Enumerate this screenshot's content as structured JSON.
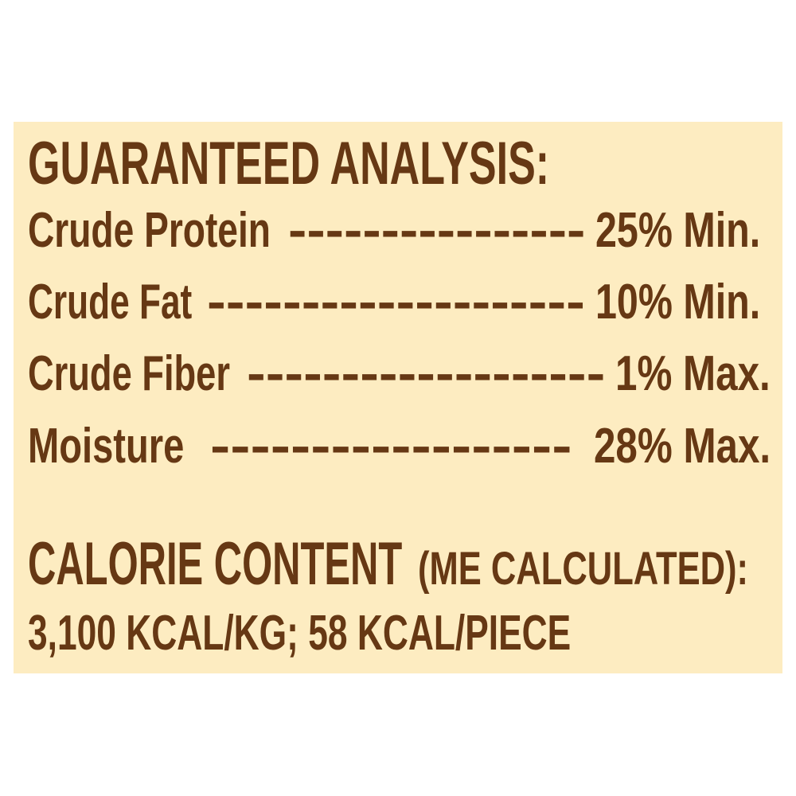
{
  "title": "GUARANTEED ANALYSIS:",
  "rows": [
    {
      "label": "Crude Protein",
      "leader": "----------------",
      "value": "25% Min."
    },
    {
      "label": "Crude Fat",
      "leader": "--------------------",
      "value": "10% Min."
    },
    {
      "label": "Crude Fiber",
      "leader": "-------------------",
      "value": "1% Max."
    },
    {
      "label": "Moisture",
      "leader": "------------------",
      "value": "28% Max."
    }
  ],
  "calorie": {
    "heading": "CALORIE CONTENT",
    "qualifier": "(ME CALCULATED):",
    "value": "3,100 KCAL/KG; 58 KCAL/PIECE"
  },
  "colors": {
    "panel": "#FDECC1",
    "text": "#663814"
  }
}
